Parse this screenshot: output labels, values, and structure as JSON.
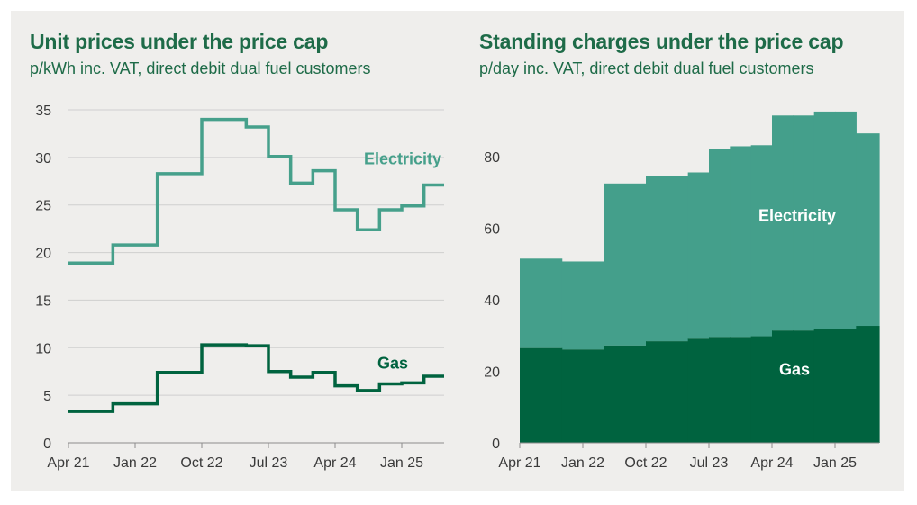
{
  "chart_data": [
    {
      "type": "line",
      "title": "Unit prices under the price cap",
      "subtitle": "p/kWh inc. VAT, direct debit dual fuel customers",
      "xlabel": "",
      "ylabel": "",
      "x_ticks": [
        "Apr 21",
        "Jan 22",
        "Oct 22",
        "Jul 23",
        "Apr 24",
        "Jan 25"
      ],
      "y_ticks": [
        "0",
        "5",
        "10",
        "15",
        "20",
        "25",
        "30",
        "35"
      ],
      "ylim": [
        0,
        35
      ],
      "grid": true,
      "step": true,
      "periods": [
        "Apr 21",
        "Oct 21",
        "Apr 22",
        "Oct 22",
        "Apr 23",
        "Jul 23",
        "Oct 23",
        "Jan 24",
        "Apr 24",
        "Jul 24",
        "Oct 24",
        "Jan 25",
        "Apr 25"
      ],
      "series": [
        {
          "name": "Electricity",
          "label": "Electricity",
          "color": "#46a08b",
          "values": [
            18.9,
            20.8,
            28.3,
            34.0,
            33.2,
            30.1,
            27.3,
            28.6,
            24.5,
            22.4,
            24.5,
            24.9,
            27.1
          ]
        },
        {
          "name": "Gas",
          "label": "Gas",
          "color": "#00633f",
          "values": [
            3.3,
            4.1,
            7.4,
            10.3,
            10.2,
            7.5,
            6.9,
            7.4,
            6.0,
            5.5,
            6.2,
            6.3,
            7.0
          ]
        }
      ]
    },
    {
      "type": "area",
      "stacked": true,
      "title": "Standing charges under the price cap",
      "subtitle": "p/day inc. VAT, direct debit dual fuel customers",
      "xlabel": "",
      "ylabel": "",
      "x_ticks": [
        "Apr 21",
        "Jan 22",
        "Oct 22",
        "Jul 23",
        "Apr 24",
        "Jan 25"
      ],
      "y_ticks": [
        "0",
        "20",
        "40",
        "60",
        "80"
      ],
      "ylim": [
        0,
        93
      ],
      "grid": false,
      "periods": [
        "Apr 21",
        "Oct 21",
        "Apr 22",
        "Oct 22",
        "Apr 23",
        "Jul 23",
        "Oct 23",
        "Jan 24",
        "Apr 24",
        "Jul 24",
        "Oct 24",
        "Jan 25",
        "Apr 25"
      ],
      "series": [
        {
          "name": "Gas",
          "label": "Gas",
          "color": "#00633f",
          "values": [
            26.5,
            26.1,
            27.2,
            28.4,
            29.1,
            29.6,
            29.6,
            29.8,
            31.4,
            31.4,
            31.7,
            31.7,
            32.7
          ]
        },
        {
          "name": "Electricity",
          "label": "Electricity",
          "color": "#449f8b",
          "values": [
            25.0,
            24.6,
            45.3,
            46.3,
            46.5,
            52.6,
            53.3,
            53.4,
            60.1,
            60.1,
            60.9,
            60.9,
            53.8
          ]
        }
      ]
    }
  ]
}
